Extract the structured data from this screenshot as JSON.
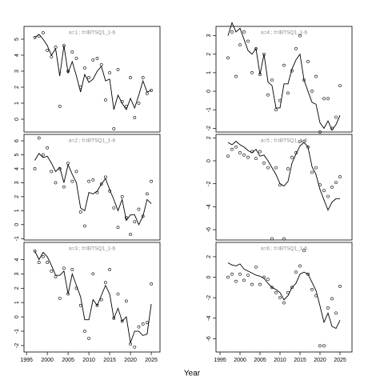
{
  "xlabel": "Year",
  "chart_data": [
    {
      "type": "line",
      "title": "a=1  ;  f=IBTSQ1_1-6",
      "color": "#000000",
      "x": [
        1997,
        1998,
        1999,
        2000,
        2001,
        2002,
        2003,
        2004,
        2005,
        2006,
        2007,
        2008,
        2009,
        2010,
        2011,
        2012,
        2013,
        2014,
        2015,
        2016,
        2017,
        2018,
        2019,
        2020,
        2021,
        2022,
        2023,
        2024,
        2025
      ],
      "xlim": [
        1994.4,
        2027.1
      ],
      "ylim": [
        -0.8,
        5.8
      ],
      "yticks": [
        0,
        1,
        2,
        3,
        4,
        5
      ],
      "series": [
        {
          "style": "line",
          "values": [
            5.1,
            5.3,
            5.0,
            4.6,
            4.0,
            4.4,
            2.7,
            4.6,
            2.9,
            3.6,
            2.7,
            1.7,
            2.8,
            2.3,
            2.5,
            3.0,
            3.3,
            2.4,
            2.5,
            0.6,
            1.5,
            1.0,
            0.6,
            1.3,
            0.7,
            1.5,
            2.4,
            1.7,
            1.8
          ]
        },
        {
          "style": "points",
          "values": [
            5.1,
            5.2,
            5.4,
            4.3,
            3.9,
            4.5,
            0.8,
            4.6,
            3.0,
            4.2,
            3.8,
            2.0,
            3.2,
            2.6,
            3.7,
            3.8,
            3.4,
            1.2,
            2.9,
            -0.6,
            3.1,
            1.1,
            0.8,
            2.6,
            0.1,
            1.0,
            2.6,
            1.6,
            1.8
          ]
        }
      ]
    },
    {
      "type": "line",
      "title": "a=2  ;  f=IBTSQ1_1-6",
      "color": "#000000",
      "x": [
        1997,
        1998,
        1999,
        2000,
        2001,
        2002,
        2003,
        2004,
        2005,
        2006,
        2007,
        2008,
        2009,
        2010,
        2011,
        2012,
        2013,
        2014,
        2015,
        2016,
        2017,
        2018,
        2019,
        2020,
        2021,
        2022,
        2023,
        2024,
        2025
      ],
      "xlim": [
        1994.4,
        2027.1
      ],
      "ylim": [
        -1.1,
        6.46
      ],
      "yticks": [
        -1,
        0,
        1,
        2,
        3,
        4,
        5,
        6
      ],
      "series": [
        {
          "style": "line",
          "values": [
            4.6,
            5.1,
            4.8,
            4.9,
            4.4,
            3.8,
            4.1,
            3.0,
            4.3,
            3.6,
            3.0,
            1.2,
            1.0,
            2.3,
            2.2,
            2.4,
            2.9,
            3.3,
            2.5,
            1.8,
            1.0,
            1.8,
            0.3,
            0.7,
            0.7,
            0.0,
            0.6,
            1.8,
            1.5
          ]
        },
        {
          "style": "points",
          "values": [
            4.0,
            6.2,
            5.0,
            5.5,
            3.8,
            3.0,
            4.0,
            2.7,
            4.4,
            3.1,
            3.8,
            0.9,
            -0.1,
            3.1,
            3.2,
            2.3,
            2.9,
            3.4,
            2.4,
            1.2,
            -0.2,
            2.0,
            0.5,
            -0.7,
            0.2,
            1.1,
            0.6,
            2.2,
            3.1
          ]
        }
      ]
    },
    {
      "type": "line",
      "title": "a=3  ;  f=IBTSQ1_1-6",
      "color": "#000000",
      "x": [
        1997,
        1998,
        1999,
        2000,
        2001,
        2002,
        2003,
        2004,
        2005,
        2006,
        2007,
        2008,
        2009,
        2010,
        2011,
        2012,
        2013,
        2014,
        2015,
        2016,
        2017,
        2018,
        2019,
        2020,
        2021,
        2022,
        2023,
        2024,
        2025
      ],
      "xlim": [
        1994.4,
        2027.1
      ],
      "ylim": [
        -2.45,
        5.2
      ],
      "yticks": [
        -2,
        -1,
        0,
        1,
        2,
        3,
        4
      ],
      "xticks": [
        1995,
        2000,
        2005,
        2010,
        2015,
        2020,
        2025
      ],
      "series": [
        {
          "style": "line",
          "values": [
            4.6,
            4.0,
            4.5,
            4.2,
            3.6,
            2.9,
            2.9,
            3.2,
            1.6,
            3.0,
            2.2,
            1.4,
            -0.2,
            -0.2,
            1.2,
            0.8,
            1.5,
            2.2,
            1.6,
            -0.1,
            0.6,
            -0.3,
            0.0,
            -1.8,
            -1.0,
            -1.0,
            -1.3,
            -1.2,
            0.9
          ]
        },
        {
          "style": "points",
          "values": [
            4.6,
            3.8,
            4.2,
            3.8,
            3.2,
            2.8,
            1.3,
            3.4,
            1.6,
            3.3,
            2.0,
            0.8,
            -1.0,
            -1.5,
            3.0,
            0.8,
            1.2,
            2.4,
            3.3,
            -0.1,
            1.6,
            -0.3,
            1.1,
            -1.9,
            -2.1,
            -0.7,
            -0.5,
            -0.4,
            2.3
          ]
        }
      ]
    },
    {
      "type": "line",
      "title": "a=4  ;  f=IBTSQ1_1-6",
      "color": "#000000",
      "x": [
        1997,
        1998,
        1999,
        2000,
        2001,
        2002,
        2003,
        2004,
        2005,
        2006,
        2007,
        2008,
        2009,
        2010,
        2011,
        2012,
        2013,
        2014,
        2015,
        2016,
        2017,
        2018,
        2019,
        2020,
        2021,
        2022,
        2023,
        2024,
        2025
      ],
      "xlim": [
        1994,
        2028
      ],
      "ylim": [
        -2.2,
        3.5
      ],
      "yticks": [
        -2,
        -1,
        0,
        1,
        2,
        3
      ],
      "series": [
        {
          "style": "line",
          "values": [
            3.0,
            3.7,
            3.2,
            3.4,
            2.8,
            2.2,
            2.0,
            2.3,
            0.9,
            2.0,
            0.5,
            0.3,
            -0.9,
            -0.9,
            0.4,
            0.4,
            1.2,
            1.7,
            2.0,
            0.6,
            0.0,
            -0.6,
            -0.7,
            -1.7,
            -2.0,
            -1.6,
            -2.1,
            -1.8,
            -1.3
          ]
        },
        {
          "style": "points",
          "values": [
            1.8,
            3.2,
            0.8,
            2.5,
            3.2,
            2.7,
            1.0,
            2.3,
            0.9,
            2.0,
            -0.2,
            0.6,
            -1.0,
            -0.5,
            1.4,
            -0.1,
            1.1,
            2.3,
            3.0,
            0.6,
            1.6,
            0.0,
            0.8,
            -2.2,
            -0.4,
            -0.4,
            -2.0,
            -1.4,
            0.3
          ]
        }
      ]
    },
    {
      "type": "line",
      "title": "a=5  ;  f=IBTSQ1_1-6",
      "color": "#000000",
      "x": [
        1997,
        1998,
        1999,
        2000,
        2001,
        2002,
        2003,
        2004,
        2005,
        2006,
        2007,
        2008,
        2009,
        2010,
        2011,
        2012,
        2013,
        2014,
        2015,
        2016,
        2017,
        2018,
        2019,
        2020,
        2021,
        2022,
        2023,
        2024,
        2025
      ],
      "xlim": [
        1994,
        2028
      ],
      "ylim": [
        -6.9,
        2.3
      ],
      "yticks": [
        -6,
        -4,
        -2,
        0,
        2
      ],
      "series": [
        {
          "style": "line",
          "values": [
            1.6,
            1.4,
            1.7,
            1.4,
            1.2,
            0.9,
            0.7,
            1.0,
            0.4,
            0.5,
            0.0,
            -0.6,
            -1.2,
            -2.0,
            -2.2,
            -1.8,
            -0.2,
            0.6,
            1.3,
            1.6,
            1.2,
            -0.5,
            -1.2,
            -2.5,
            -3.4,
            -4.3,
            -3.6,
            -3.3,
            -3.3
          ]
        },
        {
          "style": "points",
          "values": [
            0.4,
            1.0,
            1.2,
            0.7,
            0.5,
            0.3,
            0.8,
            0.2,
            0.8,
            -0.2,
            -0.6,
            -6.8,
            -0.6,
            -2.1,
            -6.8,
            -0.7,
            0.3,
            0.7,
            1.7,
            1.7,
            1.2,
            -1.0,
            -0.6,
            -2.1,
            -2.6,
            -3.1,
            -2.3,
            -1.9,
            -1.4
          ]
        }
      ]
    },
    {
      "type": "line",
      "title": "a=6  ;  f=IBTSQ1_1-6",
      "color": "#000000",
      "x": [
        1997,
        1998,
        1999,
        2000,
        2001,
        2002,
        2003,
        2004,
        2005,
        2006,
        2007,
        2008,
        2009,
        2010,
        2011,
        2012,
        2013,
        2014,
        2015,
        2016,
        2017,
        2018,
        2019,
        2020,
        2021,
        2022,
        2023,
        2024,
        2025
      ],
      "xlim": [
        1994,
        2028
      ],
      "ylim": [
        -7.3,
        3.4
      ],
      "yticks": [
        -6,
        -4,
        -2,
        0,
        2
      ],
      "xticks": [
        1995,
        2000,
        2005,
        2010,
        2015,
        2020,
        2025
      ],
      "series": [
        {
          "style": "line",
          "values": [
            1.4,
            1.2,
            1.1,
            1.3,
            0.8,
            0.6,
            0.4,
            0.2,
            0.1,
            -0.1,
            -0.6,
            -1.0,
            -1.2,
            -1.5,
            -2.2,
            -1.8,
            -1.0,
            -0.6,
            0.3,
            0.5,
            0.3,
            -0.5,
            -1.3,
            -2.8,
            -4.4,
            -3.5,
            -4.8,
            -5.0,
            -4.2
          ]
        },
        {
          "style": "points",
          "values": [
            0.0,
            0.3,
            -0.4,
            0.3,
            -0.3,
            0.2,
            -0.7,
            1.0,
            -0.7,
            0.0,
            -0.2,
            -1.0,
            -1.5,
            -2.0,
            -2.5,
            -1.5,
            -1.0,
            0.5,
            1.1,
            2.6,
            0.3,
            -1.2,
            -1.8,
            -6.7,
            -6.7,
            -3.0,
            -2.1,
            -3.5,
            -0.9
          ]
        }
      ]
    }
  ]
}
